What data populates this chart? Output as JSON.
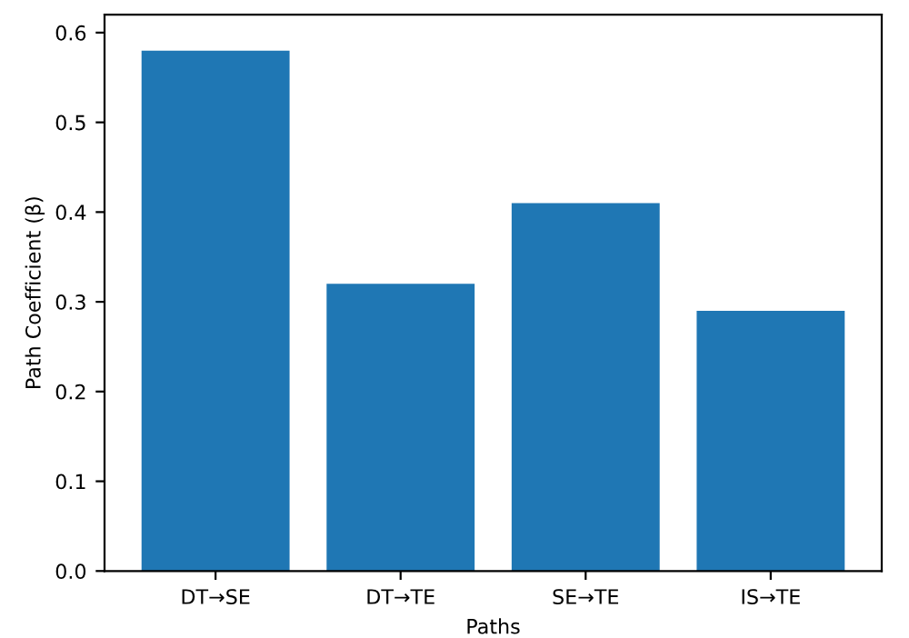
{
  "chart_data": {
    "type": "bar",
    "xlabel": "Paths",
    "ylabel": "Path Coefficient (β)",
    "categories": [
      "DT→SE",
      "DT→TE",
      "SE→TE",
      "IS→TE"
    ],
    "values": [
      0.58,
      0.32,
      0.41,
      0.29
    ],
    "color": "#1f77b4",
    "ylim": [
      0,
      0.62
    ],
    "yticks": [
      {
        "value": 0,
        "label": "0.0"
      },
      0.1,
      0.2,
      0.3,
      0.4,
      0.5,
      0.6
    ],
    "grid": false,
    "legend": false
  }
}
